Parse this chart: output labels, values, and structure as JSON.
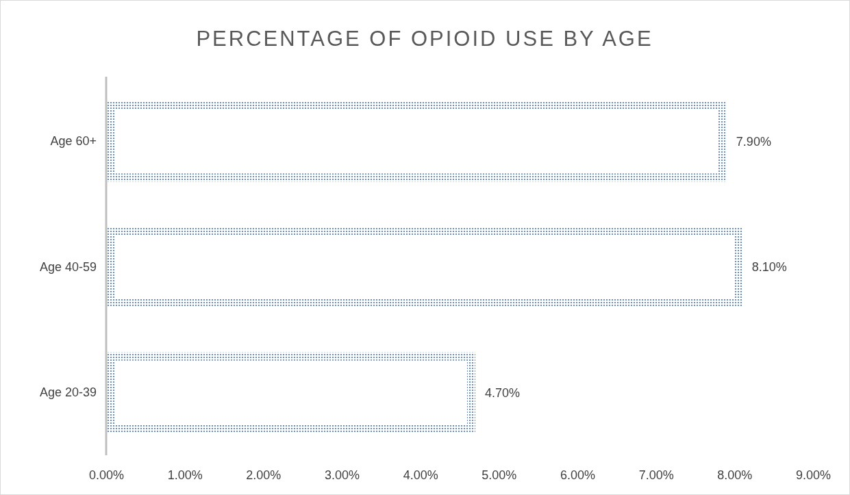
{
  "chart_data": {
    "type": "bar",
    "orientation": "horizontal",
    "title": "PERCENTAGE OF OPIOID USE BY AGE",
    "categories": [
      "Age 60+",
      "Age 40-59",
      "Age 20-39"
    ],
    "values": [
      7.9,
      8.1,
      4.7
    ],
    "value_labels": [
      "7.90%",
      "8.10%",
      "4.70%"
    ],
    "color": "#4472c4",
    "xlim": [
      0,
      9
    ],
    "xticks": [
      {
        "value": 0,
        "label": "0.00%"
      },
      {
        "value": 1,
        "label": "1.00%"
      },
      {
        "value": 2,
        "label": "2.00%"
      },
      {
        "value": 3,
        "label": "3.00%"
      },
      {
        "value": 4,
        "label": "4.00%"
      },
      {
        "value": 5,
        "label": "5.00%"
      },
      {
        "value": 6,
        "label": "6.00%"
      },
      {
        "value": 7,
        "label": "7.00%"
      },
      {
        "value": 8,
        "label": "8.00%"
      },
      {
        "value": 9,
        "label": "9.00%"
      }
    ],
    "grid": false
  }
}
